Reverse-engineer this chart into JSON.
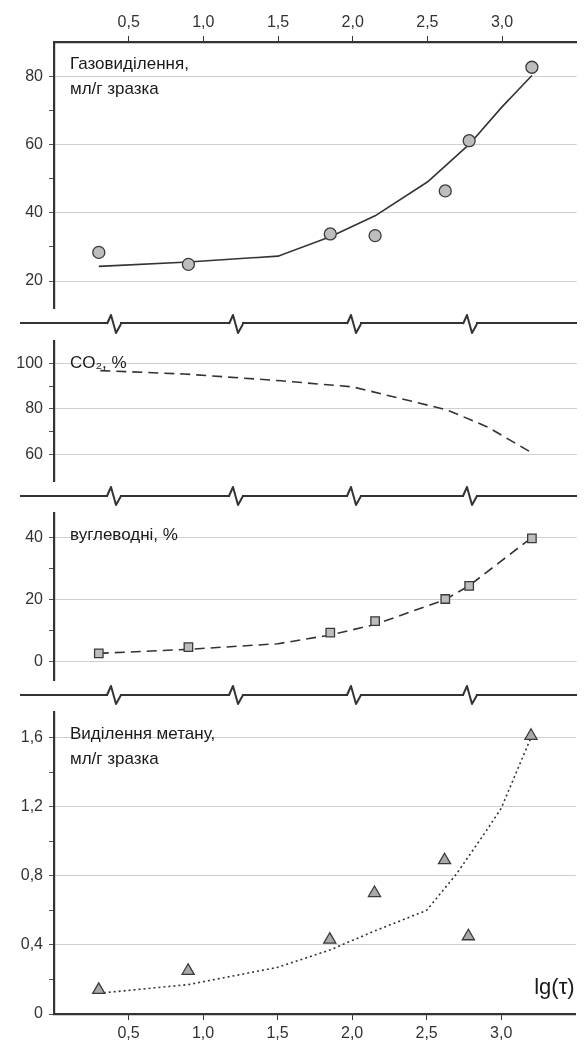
{
  "chart_data": [
    {
      "type": "scatter",
      "ylabel": "Газовиділення, мл/г зразка",
      "xlim": [
        0,
        3.5
      ],
      "xticks": [
        {
          "value": 0.5,
          "label": "0,5"
        },
        {
          "value": 1,
          "label": "1,0"
        },
        {
          "value": 1.5,
          "label": "1,5"
        },
        {
          "value": 2,
          "label": "2,0"
        },
        {
          "value": 2.5,
          "label": "2,5"
        },
        {
          "value": 3,
          "label": "3,0"
        }
      ],
      "ylim": [
        12,
        90
      ],
      "yticks": [
        20,
        {
          "value": 30,
          "label": null
        },
        40,
        {
          "value": 50,
          "label": null
        },
        60,
        {
          "value": 70,
          "label": null
        },
        80
      ],
      "grid": "y",
      "series": [
        {
          "color": "#bdbdbd",
          "marker": "circle",
          "x": [
            0.3,
            0.9,
            1.85,
            2.15,
            2.62,
            2.78,
            3.2
          ],
          "values": [
            28.4,
            24.9,
            33.8,
            33.3,
            46.4,
            61.1,
            82.6
          ]
        },
        {
          "type": "line",
          "color": "#333333",
          "marker": "none",
          "line_style": "solid",
          "x": [
            0.3,
            0.9,
            1.5,
            1.85,
            2.15,
            2.5,
            2.78,
            3.0,
            3.2
          ],
          "values": [
            24.3,
            25.6,
            27.3,
            33,
            39.1,
            49,
            60,
            71,
            80.2
          ]
        }
      ]
    },
    {
      "type": "line",
      "ylabel": "CO₂, %",
      "xlim": [
        0,
        3.5
      ],
      "ylim": [
        48,
        110
      ],
      "yticks": [
        60,
        {
          "value": 70,
          "label": null
        },
        80,
        {
          "value": 90,
          "label": null
        },
        100
      ],
      "grid": "y",
      "tick_labels": "y",
      "series": [
        {
          "color": "#333333",
          "marker": "none",
          "line_style": "dashed",
          "x": [
            0.31,
            0.87,
            1.52,
            2.0,
            2.63,
            2.9,
            3.2
          ],
          "values": [
            96.8,
            95.3,
            92.3,
            89.6,
            79.5,
            72,
            60.5
          ]
        }
      ]
    },
    {
      "type": "scatter",
      "ylabel": "вуглеводні, %",
      "xlim": [
        0,
        3.5
      ],
      "ylim": [
        -6,
        48
      ],
      "yticks": [
        0,
        {
          "value": 10,
          "label": null
        },
        20,
        {
          "value": 30,
          "label": null
        },
        40
      ],
      "grid": "y",
      "tick_labels": "y",
      "series": [
        {
          "color": "#bdbdbd",
          "marker": "square",
          "x": [
            0.3,
            0.9,
            1.85,
            2.15,
            2.62,
            2.78,
            3.2
          ],
          "values": [
            2.7,
            4.7,
            9.4,
            13.1,
            20.2,
            24.4,
            39.7
          ]
        },
        {
          "type": "line",
          "color": "#333333",
          "marker": "none",
          "line_style": "dashed",
          "x": [
            0.3,
            0.9,
            1.5,
            1.85,
            2.15,
            2.62,
            2.78,
            3.2
          ],
          "values": [
            2.7,
            4.0,
            5.8,
            8.6,
            12,
            20,
            24.5,
            40
          ]
        }
      ]
    },
    {
      "type": "scatter",
      "ylabel": "Виділення метану, мл/г зразка",
      "xlabel": "lg(τ)",
      "xlim": [
        0,
        3.5
      ],
      "xticks": [
        {
          "value": 0.5,
          "label": "0,5"
        },
        {
          "value": 1,
          "label": "1,0"
        },
        {
          "value": 1.5,
          "label": "1,5"
        },
        {
          "value": 2,
          "label": "2,0"
        },
        {
          "value": 2.5,
          "label": "2,5"
        },
        {
          "value": 3,
          "label": "3,0"
        }
      ],
      "ylim": [
        0,
        1.75
      ],
      "yticks": [
        0,
        {
          "value": 0.2,
          "label": null
        },
        {
          "value": 0.4,
          "label": "0,4"
        },
        {
          "value": 0.6,
          "label": null
        },
        {
          "value": 0.8,
          "label": "0,8"
        },
        {
          "value": 1.0,
          "label": null
        },
        {
          "value": 1.2,
          "label": "1,2"
        },
        {
          "value": 1.4,
          "label": null
        },
        {
          "value": 1.6,
          "label": "1,6"
        }
      ],
      "grid": "y",
      "series": [
        {
          "color": "#a9a9a9",
          "marker": "triangle",
          "x": [
            0.3,
            0.9,
            1.85,
            2.15,
            2.62,
            2.78,
            3.2
          ],
          "values": [
            0.14,
            0.25,
            0.43,
            0.7,
            0.89,
            0.45,
            1.61
          ]
        },
        {
          "type": "line",
          "color": "#333333",
          "marker": "none",
          "line_style": "dotted",
          "x": [
            0.3,
            0.9,
            1.5,
            1.85,
            2.15,
            2.5,
            2.7,
            2.9,
            3.0,
            3.2
          ],
          "values": [
            0.12,
            0.17,
            0.27,
            0.37,
            0.48,
            0.6,
            0.81,
            1.06,
            1.19,
            1.6
          ]
        }
      ]
    }
  ]
}
